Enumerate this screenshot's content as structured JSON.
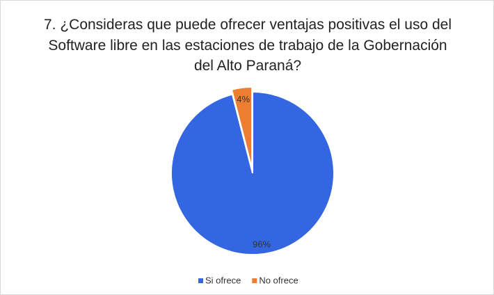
{
  "chart_data": {
    "type": "pie",
    "title": "7. ¿Consideras que puede ofrecer ventajas positivas el uso del Software libre en las estaciones de trabajo de la Gobernación del Alto Paraná?",
    "categories": [
      "Si ofrece",
      "No ofrece"
    ],
    "values": [
      96,
      4
    ],
    "value_labels": [
      "96%",
      "4%"
    ],
    "colors": [
      "#3366e0",
      "#ed7d31"
    ],
    "legend": "bottom"
  }
}
